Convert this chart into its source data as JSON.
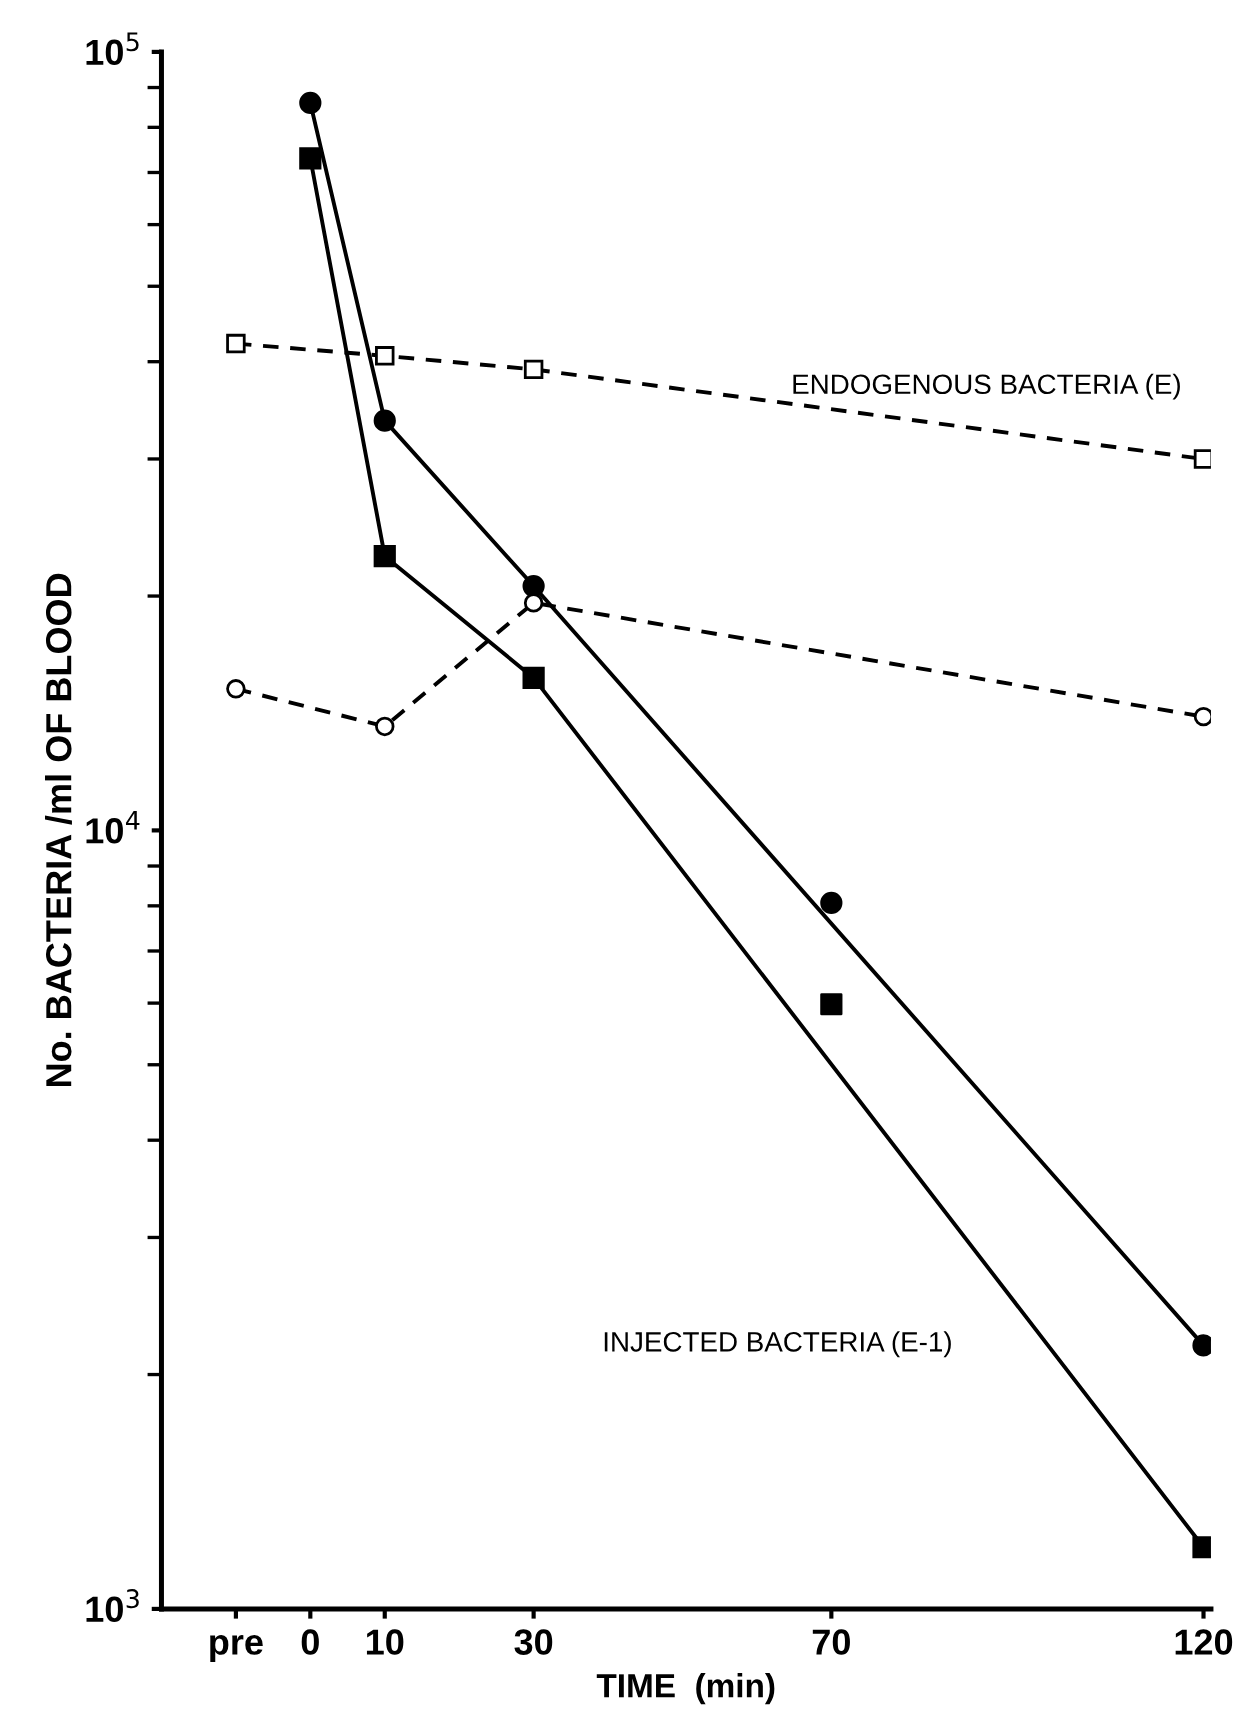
{
  "chart_data": {
    "type": "line",
    "xlabel": "TIME  (min)",
    "ylabel": "No. BACTERIA /ml OF BLOOD",
    "log": "y",
    "xlim": [
      -20,
      121
    ],
    "ylim": [
      1000,
      100000
    ],
    "xticks": [
      {
        "value": -10,
        "label": "pre"
      },
      0,
      10,
      30,
      70,
      120
    ],
    "yticks": [
      {
        "value": 1000,
        "label": "10$^{3}$"
      },
      {
        "value": 10000,
        "label": "10$^{4}$"
      },
      {
        "value": 100000,
        "label": "10$^{5}$"
      }
    ],
    "grid": false,
    "legend": false,
    "series": [
      {
        "color": "#000000",
        "marker": "circle",
        "line_style": "solid",
        "x": [
          0,
          10,
          30,
          120
        ],
        "values": [
          86000,
          33600,
          20600,
          2180
        ]
      },
      {
        "type": "scatter",
        "color": "#000000",
        "marker": "circle",
        "x": [
          70
        ],
        "values": [
          8070
        ]
      },
      {
        "color": "#000000",
        "marker": "square",
        "line_style": "solid",
        "x": [
          0,
          10,
          30,
          120
        ],
        "values": [
          73000,
          22500,
          15700,
          1200
        ]
      },
      {
        "type": "scatter",
        "color": "#000000",
        "marker": "square",
        "x": [
          70
        ],
        "values": [
          5980
        ]
      },
      {
        "color": "#000000",
        "marker": "square",
        "line_style": "dashed",
        "x": [
          -10,
          10,
          30,
          120
        ],
        "values": [
          42200,
          40700,
          39100,
          30000
        ]
      },
      {
        "color": "#000000",
        "marker": "circle",
        "line_style": "dashed",
        "x": [
          -10,
          10,
          30,
          120
        ],
        "values": [
          15200,
          13600,
          19600,
          14000
        ]
      }
    ],
    "annotations": [
      "ENDOGENOUS BACTERIA (E)",
      "INJECTED BACTERIA (E-1)"
    ]
  }
}
